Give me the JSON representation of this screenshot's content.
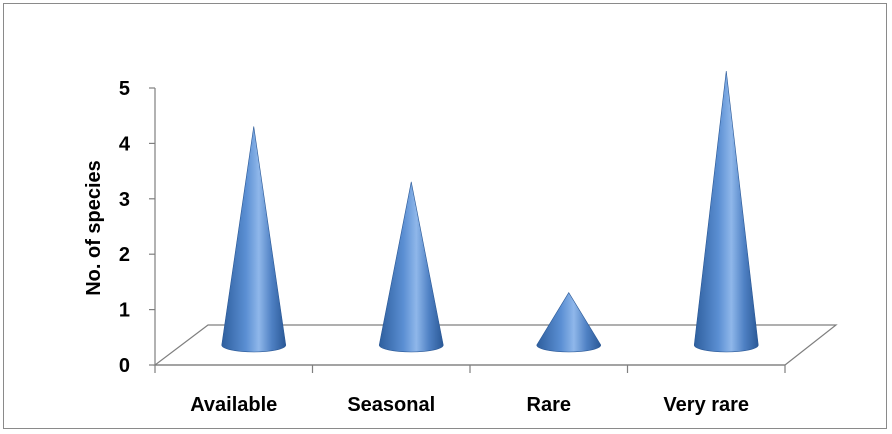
{
  "chart_data": {
    "type": "bar",
    "style": "3d-cone",
    "categories": [
      "Available",
      "Seasonal",
      "Rare",
      "Very rare"
    ],
    "values": [
      4,
      3,
      1,
      5
    ],
    "title": "",
    "xlabel": "",
    "ylabel": "No. of species",
    "ylim": [
      0,
      5
    ],
    "yticks": [
      "0",
      "1",
      "2",
      "3",
      "4",
      "5"
    ],
    "grid": false,
    "legend": "none",
    "colors": {
      "cone": "#4f81bd",
      "cone_dark": "#2c5b9a",
      "cone_light": "#9cc0ee",
      "axis": "#7f7f7f"
    }
  }
}
